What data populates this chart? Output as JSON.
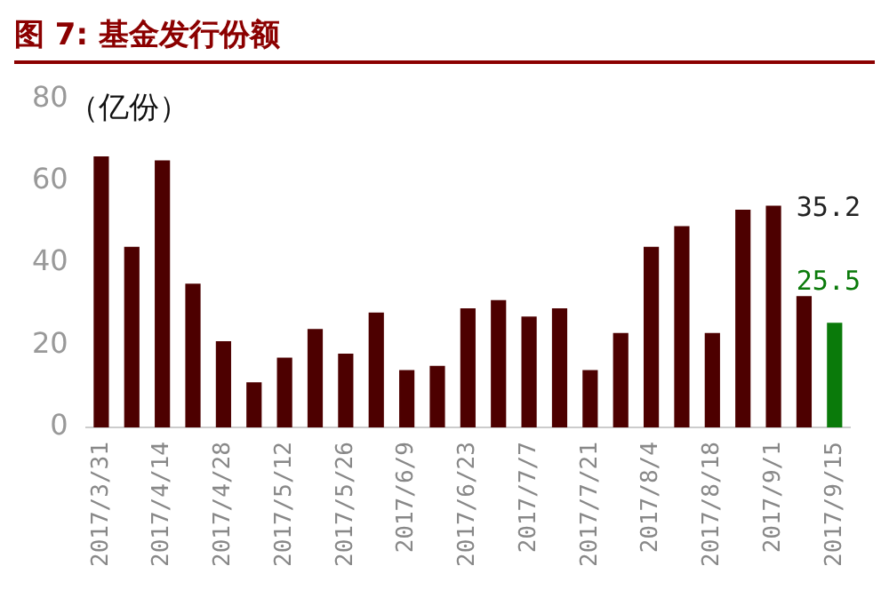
{
  "chart_data": {
    "type": "bar",
    "title": "图 7: 基金发行份额",
    "ylabel": "（亿份）",
    "categories": [
      "2017/3/31",
      null,
      "2017/4/14",
      null,
      "2017/4/28",
      null,
      "2017/5/12",
      null,
      "2017/5/26",
      null,
      "2017/6/9",
      null,
      "2017/6/23",
      null,
      "2017/7/7",
      null,
      "2017/7/21",
      null,
      "2017/8/4",
      null,
      "2017/8/18",
      null,
      "2017/9/1",
      null,
      "2017/9/15"
    ],
    "values": [
      66,
      44,
      65,
      35,
      21,
      11,
      17,
      24,
      18,
      28,
      14,
      15,
      29,
      31,
      27,
      29,
      14,
      23,
      44,
      49,
      23,
      53,
      54,
      32,
      25.5
    ],
    "colors": [
      "#4d0000",
      "#4d0000",
      "#4d0000",
      "#4d0000",
      "#4d0000",
      "#4d0000",
      "#4d0000",
      "#4d0000",
      "#4d0000",
      "#4d0000",
      "#4d0000",
      "#4d0000",
      "#4d0000",
      "#4d0000",
      "#4d0000",
      "#4d0000",
      "#4d0000",
      "#4d0000",
      "#4d0000",
      "#4d0000",
      "#4d0000",
      "#4d0000",
      "#4d0000",
      "#4d0000",
      "#0a7a0a"
    ],
    "value_labels": [
      null,
      null,
      null,
      null,
      null,
      null,
      null,
      null,
      null,
      null,
      null,
      null,
      null,
      null,
      null,
      null,
      null,
      null,
      null,
      null,
      null,
      null,
      null,
      null,
      "25.5"
    ],
    "annotations": [
      "35.2"
    ],
    "ylim": [
      0,
      80
    ],
    "yticks": [
      0,
      20,
      40,
      60,
      80
    ],
    "grid": false,
    "legend": false
  }
}
